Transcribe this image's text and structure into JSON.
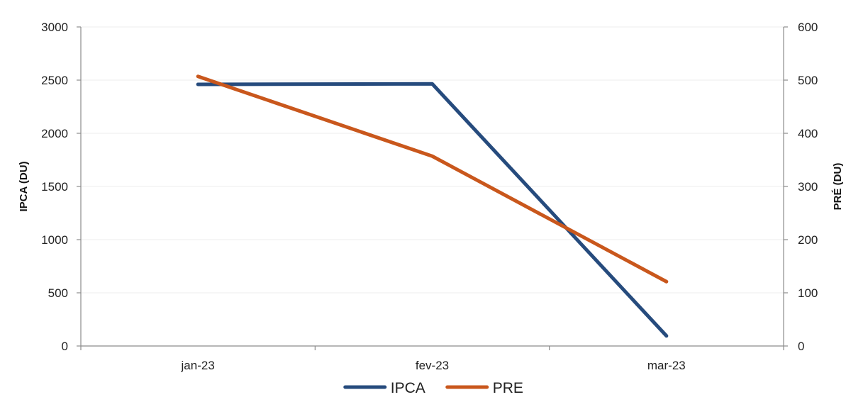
{
  "chart_data": {
    "type": "line",
    "categories": [
      "jan-23",
      "fev-23",
      "mar-23"
    ],
    "ylabel_left": "IPCA (DU)",
    "ylabel_right": "PRÉ (DU)",
    "ylim_left": [
      0,
      3000
    ],
    "ylim_right": [
      0,
      600
    ],
    "yticks_left": [
      0,
      500,
      1000,
      1500,
      2000,
      2500,
      3000
    ],
    "yticks_right": [
      0,
      100,
      200,
      300,
      400,
      500,
      600
    ],
    "grid": true,
    "legend_position": "bottom",
    "series": [
      {
        "name": "IPCA",
        "axis": "left",
        "color": "#264b7d",
        "values": [
          2460,
          2465,
          95
        ]
      },
      {
        "name": "PRE",
        "axis": "right",
        "color": "#c9571c",
        "values": [
          507,
          357,
          121
        ]
      }
    ]
  }
}
